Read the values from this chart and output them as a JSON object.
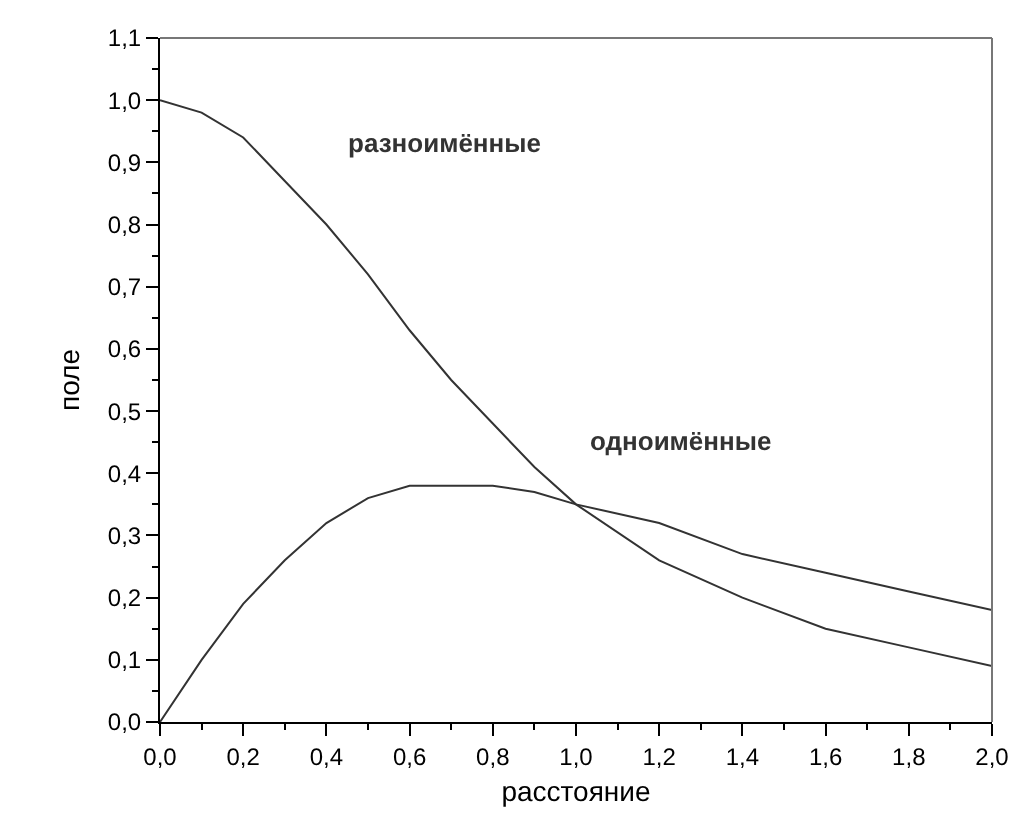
{
  "chart_data": {
    "type": "line",
    "xlabel": "расстояние",
    "ylabel": "поле",
    "x": [
      0,
      0.1,
      0.2,
      0.3,
      0.4,
      0.5,
      0.6,
      0.7,
      0.8,
      0.9,
      1.0,
      1.2,
      1.4,
      1.6,
      1.8,
      2.0
    ],
    "series": [
      {
        "name": "разноимённые",
        "color": "#333333",
        "values": [
          1.0,
          0.98,
          0.94,
          0.87,
          0.8,
          0.72,
          0.63,
          0.55,
          0.48,
          0.41,
          0.35,
          0.26,
          0.2,
          0.15,
          0.12,
          0.09
        ]
      },
      {
        "name": "одноимённые",
        "color": "#333333",
        "values": [
          0.0,
          0.1,
          0.19,
          0.26,
          0.32,
          0.36,
          0.38,
          0.38,
          0.38,
          0.37,
          0.35,
          0.32,
          0.27,
          0.24,
          0.21,
          0.18
        ]
      }
    ],
    "xlim": [
      0,
      2.0
    ],
    "xticks": [
      {
        "value": 0,
        "label": "0,0"
      },
      {
        "value": 0.2,
        "label": "0,2"
      },
      {
        "value": 0.4,
        "label": "0,4"
      },
      {
        "value": 0.6,
        "label": "0,6"
      },
      {
        "value": 0.8,
        "label": "0,8"
      },
      {
        "value": 1.0,
        "label": "1,0"
      },
      {
        "value": 1.2,
        "label": "1,2"
      },
      {
        "value": 1.4,
        "label": "1,4"
      },
      {
        "value": 1.6,
        "label": "1,6"
      },
      {
        "value": 1.8,
        "label": "1,8"
      },
      {
        "value": 2.0,
        "label": "2,0"
      }
    ],
    "ylim": [
      0,
      1.1
    ],
    "yticks": [
      {
        "value": 0,
        "label": "0,0"
      },
      {
        "value": 0.1,
        "label": "0,1"
      },
      {
        "value": 0.2,
        "label": "0,2"
      },
      {
        "value": 0.3,
        "label": "0,3"
      },
      {
        "value": 0.4,
        "label": "0,4"
      },
      {
        "value": 0.5,
        "label": "0,5"
      },
      {
        "value": 0.6,
        "label": "0,6"
      },
      {
        "value": 0.7,
        "label": "0,7"
      },
      {
        "value": 0.8,
        "label": "0,8"
      },
      {
        "value": 0.9,
        "label": "0,9"
      },
      {
        "value": 1.0,
        "label": "1,0"
      },
      {
        "value": 1.1,
        "label": "1,1"
      }
    ],
    "legend": false,
    "marker": "none",
    "line_style": "solid"
  }
}
